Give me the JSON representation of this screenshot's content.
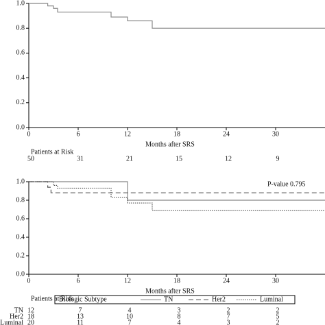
{
  "chart_data": [
    {
      "type": "step",
      "x_label": "Months after SRS",
      "xlim": [
        0,
        36
      ],
      "xticks": [
        0,
        6,
        12,
        18,
        24,
        30
      ],
      "ylim": [
        0,
        1
      ],
      "yticks": [
        {
          "value": 0,
          "label": "0.0"
        },
        0.2,
        0.4,
        0.6,
        0.8,
        {
          "value": 1,
          "label": "1.0"
        }
      ],
      "series": [
        {
          "color": "#888888",
          "dash": "solid",
          "x": [
            0,
            2.3,
            3,
            3.5,
            10,
            12,
            15,
            36
          ],
          "values": [
            1,
            0.98,
            0.96,
            0.93,
            0.89,
            0.86,
            0.8,
            0.8
          ]
        }
      ],
      "risk_table": {
        "title": "Patients at Risk",
        "rows": [
          {
            "values": [
              50,
              31,
              21,
              15,
              12,
              9
            ]
          }
        ]
      }
    },
    {
      "type": "step",
      "x_label": "Months after SRS",
      "annotation": "P-value  0.795",
      "xlim": [
        0,
        36
      ],
      "xticks": [
        0,
        6,
        12,
        18,
        24,
        30
      ],
      "ylim": [
        0,
        1
      ],
      "yticks": [
        {
          "value": 0,
          "label": "0.0"
        },
        0.2,
        0.4,
        0.6,
        0.8,
        {
          "value": 1,
          "label": "1.0"
        }
      ],
      "legend_title": "Biologic Subtype",
      "series": [
        {
          "name": "TN",
          "color": "#888888",
          "dash": "solid",
          "x": [
            0,
            12,
            36
          ],
          "values": [
            1,
            0.8,
            0.8
          ]
        },
        {
          "name": "Her2",
          "color": "#555555",
          "dash": "dashed",
          "x": [
            0,
            2.3,
            2.7,
            36
          ],
          "values": [
            1,
            0.94,
            0.88,
            0.88
          ]
        },
        {
          "name": "Luminal",
          "color": "#555555",
          "dash": "dotted",
          "x": [
            0,
            3,
            3.5,
            10,
            12,
            15,
            36
          ],
          "values": [
            1,
            0.96,
            0.93,
            0.83,
            0.77,
            0.69,
            0.69
          ]
        }
      ],
      "risk_table": {
        "title": "Patients at Risk",
        "rows": [
          {
            "label": "TN",
            "values": [
              12,
              7,
              4,
              3,
              2,
              2
            ]
          },
          {
            "label": "Her2",
            "values": [
              18,
              13,
              10,
              8,
              7,
              5
            ]
          },
          {
            "label": "Luminal",
            "values": [
              20,
              11,
              7,
              4,
              3,
              2
            ]
          }
        ]
      }
    }
  ]
}
